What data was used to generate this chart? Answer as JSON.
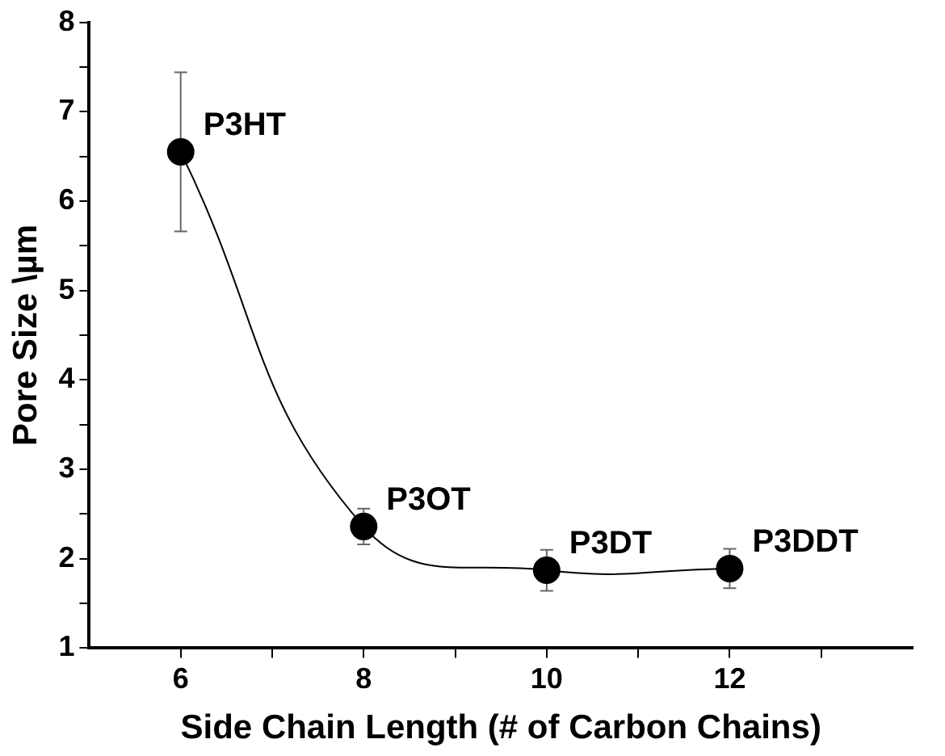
{
  "chart_data": {
    "type": "line",
    "xlabel": "Side Chain Length (# of Carbon Chains)",
    "ylabel": "Pore Size \\µm",
    "x": [
      6,
      8,
      10,
      12
    ],
    "series": [
      {
        "color": "#000000",
        "values": [
          6.55,
          2.36,
          1.87,
          1.89
        ],
        "errors": [
          0.89,
          0.2,
          0.23,
          0.22
        ]
      }
    ],
    "xlim": [
      5,
      14
    ],
    "xticks": [
      6,
      {
        "value": 7,
        "label": null
      },
      8,
      {
        "value": 9,
        "label": null
      },
      10,
      {
        "value": 11,
        "label": null
      },
      12,
      {
        "value": 13,
        "label": null
      }
    ],
    "ylim": [
      1,
      8
    ],
    "yticks": [
      1,
      {
        "value": 1.5,
        "label": null
      },
      2,
      {
        "value": 2.5,
        "label": null
      },
      3,
      {
        "value": 3.5,
        "label": null
      },
      4,
      {
        "value": 4.5,
        "label": null
      },
      5,
      {
        "value": 5.5,
        "label": null
      },
      6,
      {
        "value": 6.5,
        "label": null
      },
      7,
      {
        "value": 7.5,
        "label": null
      },
      8
    ],
    "annotations": [
      {
        "text": "P3HT",
        "x": 6,
        "y": 6.55
      },
      {
        "text": "P3OT",
        "x": 8,
        "y": 2.36
      },
      {
        "text": "P3DT",
        "x": 10,
        "y": 1.87
      },
      {
        "text": "P3DDT",
        "x": 12,
        "y": 1.89
      }
    ],
    "marker": "circle",
    "line_style": "solid",
    "grid": false,
    "legend": false
  }
}
